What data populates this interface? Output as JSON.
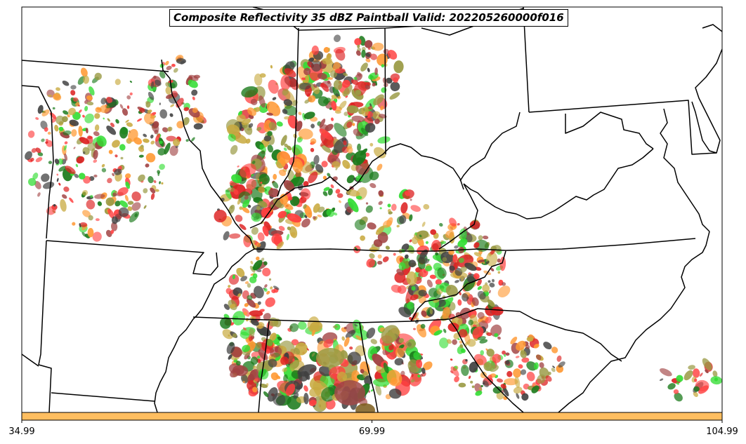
{
  "title": "Composite Reflectivity 35 dBZ Paintball Valid: 202205260000f016",
  "colorbar": {
    "color": "#ffbe60",
    "ticks": [
      "34.99",
      "69.99",
      "104.99"
    ]
  },
  "member_colors": [
    "#ff4040",
    "#33dd33",
    "#ff9933",
    "#9a9a44",
    "#404040",
    "#1a7a1a",
    "#a04040",
    "#dd2222",
    "#c8aa40"
  ],
  "map": {
    "border_color": "#000000",
    "coast_color": "#000000",
    "background": "#ffffff"
  }
}
